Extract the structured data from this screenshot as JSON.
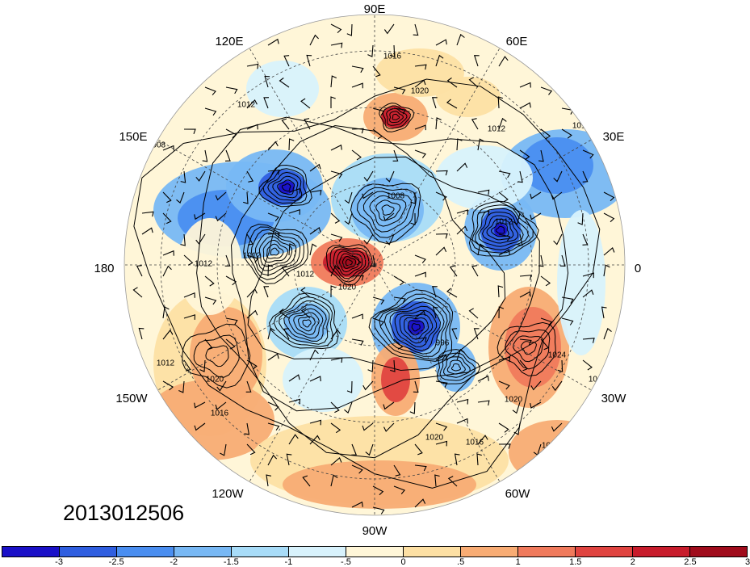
{
  "map": {
    "projection": "polar-stereographic-north",
    "fields": [
      "shaded anomaly",
      "sea-level pressure contours",
      "wind barbs"
    ],
    "longitude_labels": {
      "lon_90E": "90E",
      "lon_60E": "60E",
      "lon_30E": "30E",
      "lon_0": "0",
      "lon_30W": "30W",
      "lon_60W": "60W",
      "lon_90W": "90W",
      "lon_120W": "120W",
      "lon_150W": "150W",
      "lon_180": "180",
      "lon_150E": "150E",
      "lon_120E": "120E"
    },
    "contour_labels": [
      "1016",
      "1020",
      "1012",
      "1008",
      "1012",
      "1012",
      "1008",
      "1012",
      "1012",
      "1020",
      "996",
      "1012",
      "1024",
      "1020",
      "1012",
      "1016",
      "1020",
      "1012",
      "1020",
      "1016",
      "1012",
      "1012"
    ]
  },
  "timestamp": "2013012506",
  "colorbar": {
    "colors": [
      "#1a10c8",
      "#2f5ee0",
      "#4a8ef0",
      "#78b8f4",
      "#a8dcf8",
      "#d8f2fc",
      "#fff6d8",
      "#fde0a4",
      "#f8ac74",
      "#f07a5c",
      "#e04440",
      "#c81c2c",
      "#a00c1c"
    ],
    "tick_labels": [
      "-3",
      "-2.5",
      "-2",
      "-1.5",
      "-1",
      "-.5",
      "0",
      ".5",
      "1",
      "1.5",
      "2",
      "2.5",
      "3"
    ]
  }
}
